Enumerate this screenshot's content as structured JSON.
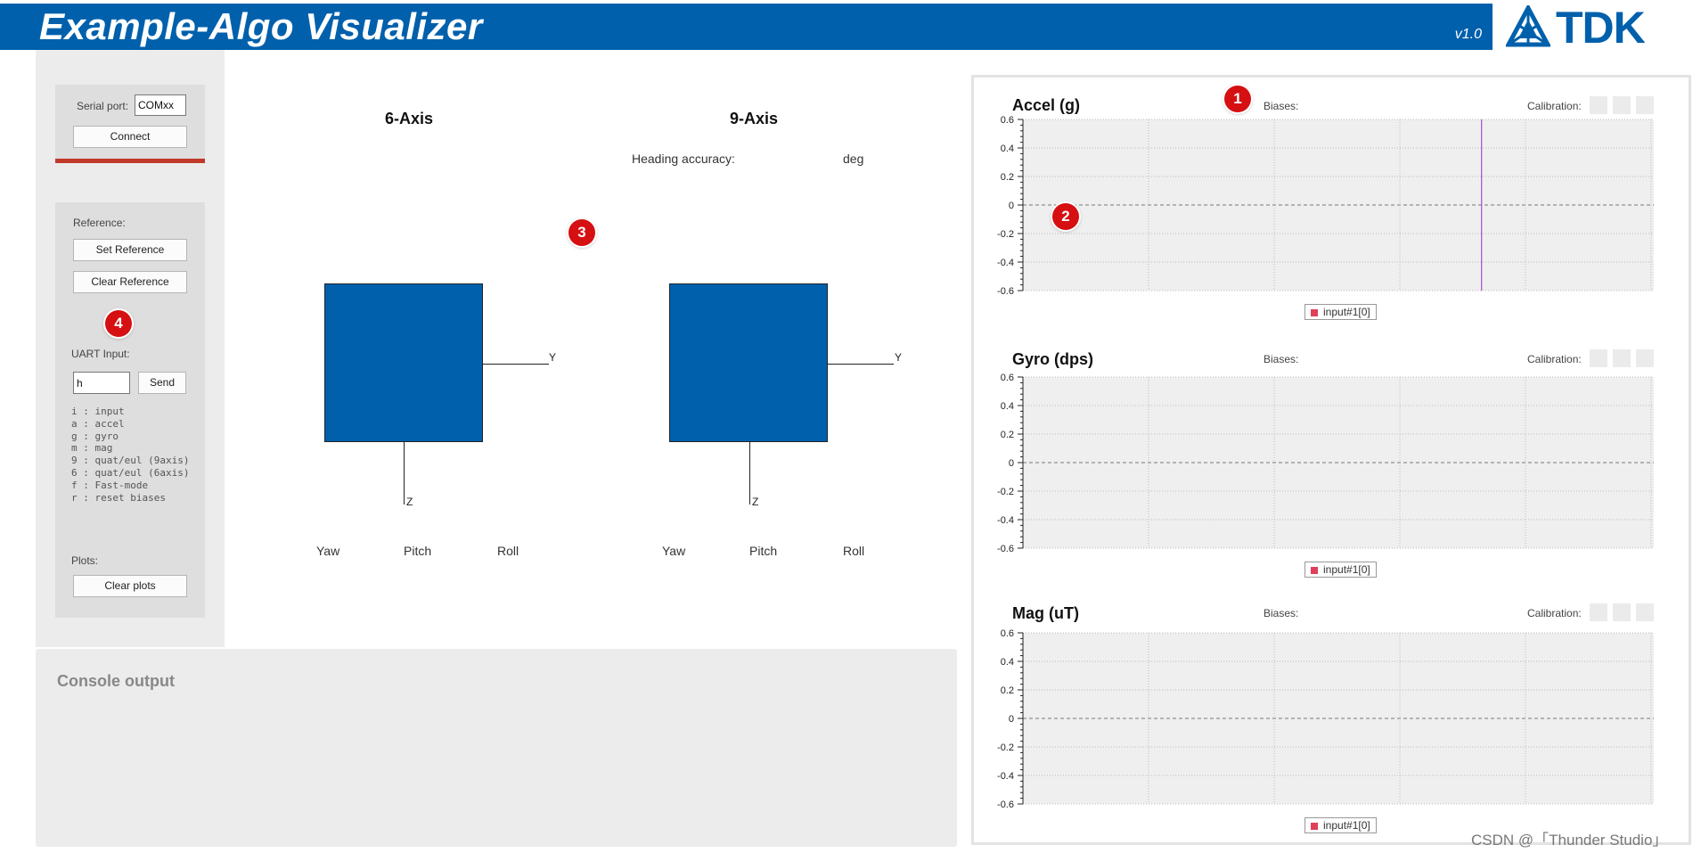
{
  "header": {
    "title": "Example-Algo Visualizer",
    "version": "v1.0",
    "brand": "TDK",
    "brand_color": "#0060ac"
  },
  "serial": {
    "label": "Serial port:",
    "value": "COMxx",
    "connect_label": "Connect"
  },
  "reference": {
    "label": "Reference:",
    "set_label": "Set Reference",
    "clear_label": "Clear Reference"
  },
  "uart": {
    "label": "UART Input:",
    "value": "h",
    "send_label": "Send",
    "commands": [
      "i : input",
      "a : accel",
      "g : gyro",
      "m : mag",
      "9 : quat/eul (9axis)",
      "6 : quat/eul (6axis)",
      "f : Fast-mode",
      "r : reset biases"
    ]
  },
  "plots_ctrl": {
    "label": "Plots:",
    "clear_label": "Clear plots"
  },
  "six_axis": {
    "title": "6-Axis",
    "y_axis": "Y",
    "z_axis": "Z",
    "yaw": "Yaw",
    "pitch": "Pitch",
    "roll": "Roll"
  },
  "nine_axis": {
    "title": "9-Axis",
    "heading_label": "Heading accuracy:",
    "heading_unit": "deg",
    "y_axis": "Y",
    "z_axis": "Z",
    "yaw": "Yaw",
    "pitch": "Pitch",
    "roll": "Roll"
  },
  "console": {
    "title": "Console output"
  },
  "plots": [
    {
      "title": "Accel (g)",
      "biases_label": "Biases:",
      "calibration_label": "Calibration:",
      "legend": "input#1[0]",
      "yticks": [
        "0.6",
        "0.4",
        "0.2",
        "0",
        "-0.2",
        "-0.4",
        "-0.6"
      ],
      "marker_x_fraction": 0.727
    },
    {
      "title": "Gyro (dps)",
      "biases_label": "Biases:",
      "calibration_label": "Calibration:",
      "legend": "input#1[0]",
      "yticks": [
        "0.6",
        "0.4",
        "0.2",
        "0",
        "-0.2",
        "-0.4",
        "-0.6"
      ]
    },
    {
      "title": "Mag (uT)",
      "biases_label": "Biases:",
      "calibration_label": "Calibration:",
      "legend": "input#1[0]",
      "yticks": [
        "0.6",
        "0.4",
        "0.2",
        "0",
        "-0.2",
        "-0.4",
        "-0.6"
      ]
    }
  ],
  "badges": [
    "1",
    "2",
    "3",
    "4"
  ],
  "watermark": "CSDN @「Thunder Studio」"
}
